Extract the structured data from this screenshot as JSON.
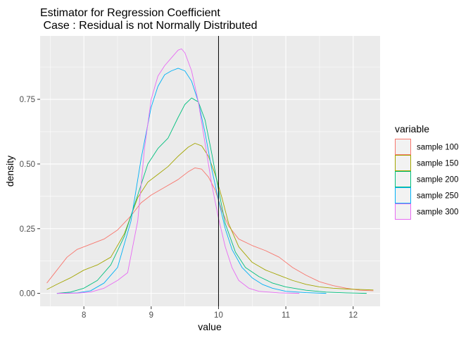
{
  "chart_data": {
    "type": "line",
    "title_line1": "Estimator for Regression Coefficient",
    "title_line2": " Case : Residual is not Normally Distributed",
    "xlabel": "value",
    "ylabel": "density",
    "xlim": [
      7.35,
      12.4
    ],
    "ylim": [
      -0.05,
      0.995
    ],
    "x_ticks": [
      8,
      9,
      10,
      11,
      12
    ],
    "x_tick_labels": [
      "8",
      "9",
      "10",
      "11",
      "12"
    ],
    "y_ticks": [
      0.0,
      0.25,
      0.5,
      0.75
    ],
    "y_tick_labels": [
      "0.00",
      "0.25",
      "0.50",
      "0.75"
    ],
    "grid": true,
    "vline_x": 10,
    "legend_title": "variable",
    "legend_position": "right",
    "series": [
      {
        "name": "sample 100",
        "color": "#F8766D",
        "points": [
          [
            7.45,
            0.04
          ],
          [
            7.6,
            0.09
          ],
          [
            7.75,
            0.14
          ],
          [
            7.9,
            0.17
          ],
          [
            8.1,
            0.19
          ],
          [
            8.3,
            0.21
          ],
          [
            8.5,
            0.245
          ],
          [
            8.7,
            0.3
          ],
          [
            8.85,
            0.35
          ],
          [
            9.0,
            0.38
          ],
          [
            9.2,
            0.41
          ],
          [
            9.4,
            0.44
          ],
          [
            9.55,
            0.47
          ],
          [
            9.65,
            0.485
          ],
          [
            9.75,
            0.48
          ],
          [
            9.85,
            0.45
          ],
          [
            9.95,
            0.4
          ],
          [
            10.05,
            0.32
          ],
          [
            10.15,
            0.26
          ],
          [
            10.3,
            0.21
          ],
          [
            10.5,
            0.185
          ],
          [
            10.7,
            0.165
          ],
          [
            10.9,
            0.14
          ],
          [
            11.1,
            0.1
          ],
          [
            11.3,
            0.07
          ],
          [
            11.5,
            0.045
          ],
          [
            11.7,
            0.03
          ],
          [
            11.9,
            0.02
          ],
          [
            12.1,
            0.012
          ],
          [
            12.3,
            0.01
          ]
        ]
      },
      {
        "name": "sample 150",
        "color": "#A3A500",
        "points": [
          [
            7.45,
            0.015
          ],
          [
            7.6,
            0.035
          ],
          [
            7.8,
            0.06
          ],
          [
            8.0,
            0.09
          ],
          [
            8.2,
            0.11
          ],
          [
            8.4,
            0.14
          ],
          [
            8.6,
            0.23
          ],
          [
            8.8,
            0.37
          ],
          [
            8.95,
            0.43
          ],
          [
            9.1,
            0.46
          ],
          [
            9.25,
            0.49
          ],
          [
            9.4,
            0.53
          ],
          [
            9.55,
            0.565
          ],
          [
            9.65,
            0.58
          ],
          [
            9.75,
            0.57
          ],
          [
            9.85,
            0.53
          ],
          [
            9.95,
            0.46
          ],
          [
            10.05,
            0.37
          ],
          [
            10.15,
            0.27
          ],
          [
            10.3,
            0.18
          ],
          [
            10.5,
            0.12
          ],
          [
            10.7,
            0.09
          ],
          [
            10.9,
            0.07
          ],
          [
            11.1,
            0.05
          ],
          [
            11.3,
            0.035
          ],
          [
            11.5,
            0.025
          ],
          [
            11.7,
            0.02
          ],
          [
            11.9,
            0.017
          ],
          [
            12.1,
            0.015
          ],
          [
            12.3,
            0.013
          ]
        ]
      },
      {
        "name": "sample 200",
        "color": "#00BF7D",
        "points": [
          [
            7.6,
            0.0
          ],
          [
            7.8,
            0.005
          ],
          [
            8.0,
            0.02
          ],
          [
            8.2,
            0.05
          ],
          [
            8.4,
            0.11
          ],
          [
            8.6,
            0.22
          ],
          [
            8.8,
            0.38
          ],
          [
            8.95,
            0.5
          ],
          [
            9.1,
            0.56
          ],
          [
            9.25,
            0.6
          ],
          [
            9.4,
            0.68
          ],
          [
            9.5,
            0.73
          ],
          [
            9.6,
            0.755
          ],
          [
            9.7,
            0.74
          ],
          [
            9.8,
            0.67
          ],
          [
            9.9,
            0.54
          ],
          [
            10.0,
            0.4
          ],
          [
            10.1,
            0.27
          ],
          [
            10.25,
            0.16
          ],
          [
            10.4,
            0.1
          ],
          [
            10.6,
            0.065
          ],
          [
            10.8,
            0.04
          ],
          [
            11.0,
            0.025
          ],
          [
            11.3,
            0.012
          ],
          [
            11.6,
            0.005
          ],
          [
            11.9,
            0.002
          ],
          [
            12.2,
            0.0
          ]
        ]
      },
      {
        "name": "sample 250",
        "color": "#00B0F6",
        "points": [
          [
            7.6,
            0.0
          ],
          [
            7.9,
            0.002
          ],
          [
            8.1,
            0.01
          ],
          [
            8.3,
            0.04
          ],
          [
            8.5,
            0.1
          ],
          [
            8.7,
            0.28
          ],
          [
            8.85,
            0.52
          ],
          [
            9.0,
            0.72
          ],
          [
            9.1,
            0.8
          ],
          [
            9.2,
            0.845
          ],
          [
            9.3,
            0.86
          ],
          [
            9.4,
            0.87
          ],
          [
            9.5,
            0.86
          ],
          [
            9.6,
            0.82
          ],
          [
            9.7,
            0.74
          ],
          [
            9.8,
            0.62
          ],
          [
            9.9,
            0.48
          ],
          [
            10.0,
            0.36
          ],
          [
            10.1,
            0.25
          ],
          [
            10.2,
            0.17
          ],
          [
            10.35,
            0.1
          ],
          [
            10.5,
            0.06
          ],
          [
            10.65,
            0.035
          ],
          [
            10.8,
            0.02
          ],
          [
            11.0,
            0.008
          ],
          [
            11.3,
            0.003
          ],
          [
            11.6,
            0.0
          ]
        ]
      },
      {
        "name": "sample 300",
        "color": "#E76BF3",
        "points": [
          [
            7.6,
            0.0
          ],
          [
            7.9,
            0.001
          ],
          [
            8.1,
            0.005
          ],
          [
            8.3,
            0.02
          ],
          [
            8.5,
            0.05
          ],
          [
            8.65,
            0.08
          ],
          [
            8.8,
            0.28
          ],
          [
            8.9,
            0.56
          ],
          [
            9.0,
            0.75
          ],
          [
            9.1,
            0.84
          ],
          [
            9.2,
            0.88
          ],
          [
            9.3,
            0.91
          ],
          [
            9.4,
            0.94
          ],
          [
            9.45,
            0.945
          ],
          [
            9.5,
            0.93
          ],
          [
            9.6,
            0.86
          ],
          [
            9.7,
            0.74
          ],
          [
            9.8,
            0.58
          ],
          [
            9.9,
            0.42
          ],
          [
            10.0,
            0.29
          ],
          [
            10.1,
            0.18
          ],
          [
            10.2,
            0.1
          ],
          [
            10.3,
            0.05
          ],
          [
            10.45,
            0.02
          ],
          [
            10.6,
            0.008
          ],
          [
            10.9,
            0.002
          ],
          [
            11.2,
            0.0
          ]
        ]
      }
    ]
  }
}
